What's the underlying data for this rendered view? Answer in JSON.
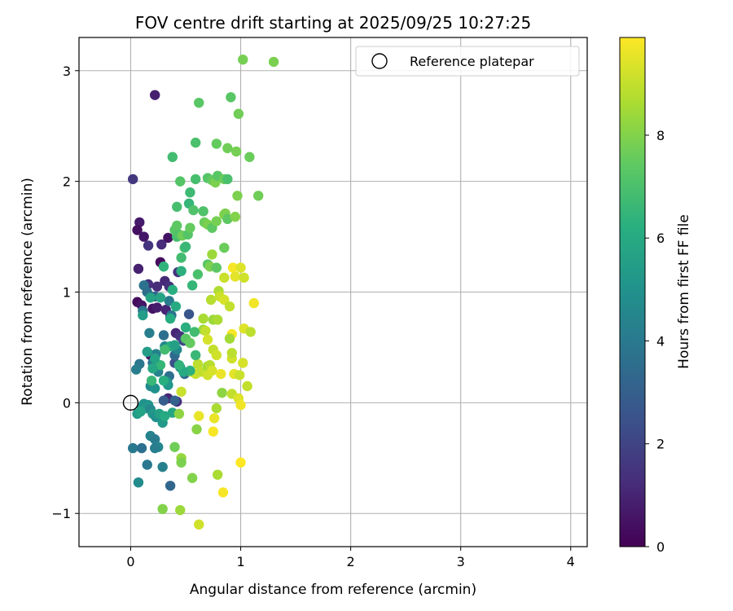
{
  "chart_data": {
    "type": "scatter",
    "title": "FOV centre drift starting at 2025/09/25 10:27:25",
    "xlabel": "Angular distance from reference (arcmin)",
    "ylabel": "Rotation from reference (arcmin)",
    "xlim": [
      -0.47,
      4.15
    ],
    "ylim": [
      -1.3,
      3.3
    ],
    "xticks": [
      0,
      1,
      2,
      3,
      4
    ],
    "xtick_labels": [
      "0",
      "1",
      "2",
      "3",
      "4"
    ],
    "yticks": [
      -1,
      0,
      1,
      2,
      3
    ],
    "ytick_labels": [
      "−1",
      "0",
      "1",
      "2",
      "3"
    ],
    "grid": true,
    "legend": {
      "position": "top-right",
      "entries": [
        "Reference platepar"
      ]
    },
    "reference_point": {
      "x": 0,
      "y": 0,
      "marker": "open-circle"
    },
    "colorbar": {
      "label": "Hours from first FF file",
      "colormap": "viridis",
      "range": [
        0,
        9.9
      ],
      "ticks": [
        0,
        2,
        4,
        6,
        8
      ],
      "tick_labels": [
        "0",
        "2",
        "4",
        "6",
        "8"
      ]
    },
    "points": [
      {
        "x": 0.22,
        "y": 2.78,
        "h": 0.9
      },
      {
        "x": 0.02,
        "y": 2.02,
        "h": 1.6
      },
      {
        "x": 0.08,
        "y": 1.63,
        "h": 0.7
      },
      {
        "x": 0.06,
        "y": 1.56,
        "h": 0.4
      },
      {
        "x": 0.12,
        "y": 1.5,
        "h": 0.6
      },
      {
        "x": 0.16,
        "y": 1.42,
        "h": 1.5
      },
      {
        "x": 0.28,
        "y": 1.43,
        "h": 1.2
      },
      {
        "x": 0.34,
        "y": 1.49,
        "h": 0.5
      },
      {
        "x": 0.07,
        "y": 1.21,
        "h": 0.9
      },
      {
        "x": 0.27,
        "y": 1.27,
        "h": 0.3
      },
      {
        "x": 0.31,
        "y": 1.1,
        "h": 1.1
      },
      {
        "x": 0.16,
        "y": 1.07,
        "h": 1.3
      },
      {
        "x": 0.24,
        "y": 1.05,
        "h": 1.2
      },
      {
        "x": 0.35,
        "y": 1.05,
        "h": 1.4
      },
      {
        "x": 0.43,
        "y": 1.18,
        "h": 1.5
      },
      {
        "x": 0.06,
        "y": 0.91,
        "h": 0.3
      },
      {
        "x": 0.1,
        "y": 0.88,
        "h": 0.6
      },
      {
        "x": 0.2,
        "y": 0.85,
        "h": 0.5
      },
      {
        "x": 0.24,
        "y": 0.86,
        "h": 0.8
      },
      {
        "x": 0.32,
        "y": 0.84,
        "h": 1.0
      },
      {
        "x": 0.36,
        "y": 0.78,
        "h": 1.3
      },
      {
        "x": 0.41,
        "y": 0.63,
        "h": 1.1
      },
      {
        "x": 0.45,
        "y": 0.6,
        "h": 1.4
      },
      {
        "x": 0.18,
        "y": 0.43,
        "h": 0.5
      },
      {
        "x": 0.34,
        "y": 0.04,
        "h": 1.0
      },
      {
        "x": 0.42,
        "y": 0.01,
        "h": 1.3
      },
      {
        "x": 0.48,
        "y": 0.56,
        "h": 2.2
      },
      {
        "x": 0.53,
        "y": 0.8,
        "h": 2.6
      },
      {
        "x": 0.4,
        "y": 0.36,
        "h": 2.4
      },
      {
        "x": 0.12,
        "y": 1.06,
        "h": 3.7
      },
      {
        "x": 0.15,
        "y": 1.0,
        "h": 3.5
      },
      {
        "x": 0.22,
        "y": 0.96,
        "h": 3.2
      },
      {
        "x": 0.11,
        "y": 0.83,
        "h": 3.9
      },
      {
        "x": 0.17,
        "y": 0.63,
        "h": 4.2
      },
      {
        "x": 0.3,
        "y": 0.61,
        "h": 3.6
      },
      {
        "x": 0.35,
        "y": 0.92,
        "h": 4.1
      },
      {
        "x": 0.37,
        "y": 0.79,
        "h": 3.8
      },
      {
        "x": 0.4,
        "y": 0.43,
        "h": 3.4
      },
      {
        "x": 0.31,
        "y": 0.51,
        "h": 4.6
      },
      {
        "x": 0.23,
        "y": 0.44,
        "h": 4.3
      },
      {
        "x": 0.2,
        "y": 0.36,
        "h": 4.0
      },
      {
        "x": 0.08,
        "y": 0.35,
        "h": 3.9
      },
      {
        "x": 0.05,
        "y": 0.3,
        "h": 4.2
      },
      {
        "x": 0.25,
        "y": 0.28,
        "h": 4.4
      },
      {
        "x": 0.35,
        "y": 0.24,
        "h": 3.6
      },
      {
        "x": 0.18,
        "y": 0.15,
        "h": 4.7
      },
      {
        "x": 0.22,
        "y": 0.13,
        "h": 5.0
      },
      {
        "x": 0.33,
        "y": 0.19,
        "h": 4.9
      },
      {
        "x": 0.34,
        "y": 0.16,
        "h": 5.2
      },
      {
        "x": 0.42,
        "y": 0.48,
        "h": 4.5
      },
      {
        "x": 0.45,
        "y": 0.32,
        "h": 4.8
      },
      {
        "x": 0.49,
        "y": 0.26,
        "h": 3.3
      },
      {
        "x": 0.1,
        "y": -0.04,
        "h": 5.3
      },
      {
        "x": 0.12,
        "y": -0.01,
        "h": 5.0
      },
      {
        "x": 0.14,
        "y": -0.05,
        "h": 5.5
      },
      {
        "x": 0.16,
        "y": -0.02,
        "h": 5.1
      },
      {
        "x": 0.18,
        "y": -0.06,
        "h": 4.6
      },
      {
        "x": 0.06,
        "y": -0.1,
        "h": 5.4
      },
      {
        "x": 0.09,
        "y": -0.08,
        "h": 5.7
      },
      {
        "x": 0.2,
        "y": -0.1,
        "h": 5.2
      },
      {
        "x": 0.23,
        "y": -0.13,
        "h": 4.9
      },
      {
        "x": 0.26,
        "y": -0.1,
        "h": 5.6
      },
      {
        "x": 0.29,
        "y": -0.18,
        "h": 5.3
      },
      {
        "x": 0.31,
        "y": -0.12,
        "h": 6.0
      },
      {
        "x": 0.38,
        "y": -0.09,
        "h": 5.8
      },
      {
        "x": 0.4,
        "y": 0.02,
        "h": 3.1
      },
      {
        "x": 0.3,
        "y": 0.02,
        "h": 2.9
      },
      {
        "x": 0.02,
        "y": -0.41,
        "h": 4.0
      },
      {
        "x": 0.1,
        "y": -0.41,
        "h": 3.6
      },
      {
        "x": 0.15,
        "y": -0.56,
        "h": 3.9
      },
      {
        "x": 0.18,
        "y": -0.3,
        "h": 4.4
      },
      {
        "x": 0.22,
        "y": -0.33,
        "h": 4.1
      },
      {
        "x": 0.25,
        "y": -0.4,
        "h": 4.6
      },
      {
        "x": 0.22,
        "y": -0.41,
        "h": 4.2
      },
      {
        "x": 0.29,
        "y": -0.58,
        "h": 4.3
      },
      {
        "x": 0.07,
        "y": -0.72,
        "h": 4.7
      },
      {
        "x": 0.36,
        "y": -0.75,
        "h": 3.3
      },
      {
        "x": 0.4,
        "y": -0.4,
        "h": 7.7
      },
      {
        "x": 0.44,
        "y": -0.1,
        "h": 8.2
      },
      {
        "x": 0.46,
        "y": -0.5,
        "h": 8.3
      },
      {
        "x": 0.46,
        "y": -0.54,
        "h": 7.9
      },
      {
        "x": 0.29,
        "y": -0.96,
        "h": 8.0
      },
      {
        "x": 0.45,
        "y": -0.97,
        "h": 8.4
      },
      {
        "x": 0.56,
        "y": -0.68,
        "h": 8.0
      },
      {
        "x": 0.62,
        "y": -1.1,
        "h": 9.2
      },
      {
        "x": 0.6,
        "y": -0.24,
        "h": 8.1
      },
      {
        "x": 0.62,
        "y": -0.12,
        "h": 9.6
      },
      {
        "x": 0.75,
        "y": -0.26,
        "h": 9.8
      },
      {
        "x": 0.76,
        "y": -0.14,
        "h": 9.6
      },
      {
        "x": 0.78,
        "y": -0.05,
        "h": 8.6
      },
      {
        "x": 0.79,
        "y": -0.65,
        "h": 8.6
      },
      {
        "x": 0.84,
        "y": -0.81,
        "h": 9.8
      },
      {
        "x": 1.0,
        "y": -0.54,
        "h": 9.9
      },
      {
        "x": 0.46,
        "y": 0.1,
        "h": 9.1
      },
      {
        "x": 0.55,
        "y": 0.28,
        "h": 9.0
      },
      {
        "x": 0.59,
        "y": 0.26,
        "h": 9.1
      },
      {
        "x": 0.61,
        "y": 0.35,
        "h": 8.9
      },
      {
        "x": 0.64,
        "y": 0.28,
        "h": 9.0
      },
      {
        "x": 0.7,
        "y": 0.33,
        "h": 8.5
      },
      {
        "x": 0.72,
        "y": 0.34,
        "h": 8.8
      },
      {
        "x": 0.7,
        "y": 0.25,
        "h": 9.2
      },
      {
        "x": 0.74,
        "y": 0.29,
        "h": 9.3
      },
      {
        "x": 0.75,
        "y": 0.48,
        "h": 9.0
      },
      {
        "x": 0.78,
        "y": 0.43,
        "h": 9.2
      },
      {
        "x": 0.82,
        "y": 0.26,
        "h": 9.6
      },
      {
        "x": 0.83,
        "y": 0.09,
        "h": 8.2
      },
      {
        "x": 0.92,
        "y": 0.08,
        "h": 9.0
      },
      {
        "x": 0.94,
        "y": 0.26,
        "h": 9.5
      },
      {
        "x": 0.92,
        "y": 0.4,
        "h": 9.2
      },
      {
        "x": 0.92,
        "y": 0.45,
        "h": 8.9
      },
      {
        "x": 0.98,
        "y": 0.04,
        "h": 9.4
      },
      {
        "x": 1.0,
        "y": -0.02,
        "h": 9.7
      },
      {
        "x": 0.99,
        "y": 0.25,
        "h": 9.1
      },
      {
        "x": 1.02,
        "y": 0.36,
        "h": 9.3
      },
      {
        "x": 1.06,
        "y": 0.15,
        "h": 9.0
      },
      {
        "x": 1.03,
        "y": 0.67,
        "h": 9.4
      },
      {
        "x": 1.09,
        "y": 0.64,
        "h": 8.9
      },
      {
        "x": 1.12,
        "y": 0.9,
        "h": 9.7
      },
      {
        "x": 0.92,
        "y": 0.62,
        "h": 9.8
      },
      {
        "x": 0.9,
        "y": 0.58,
        "h": 8.5
      },
      {
        "x": 0.66,
        "y": 0.66,
        "h": 8.3
      },
      {
        "x": 0.66,
        "y": 0.76,
        "h": 8.6
      },
      {
        "x": 0.68,
        "y": 0.65,
        "h": 9.0
      },
      {
        "x": 0.7,
        "y": 0.57,
        "h": 9.3
      },
      {
        "x": 0.73,
        "y": 0.93,
        "h": 8.8
      },
      {
        "x": 0.75,
        "y": 0.75,
        "h": 8.4
      },
      {
        "x": 0.79,
        "y": 0.75,
        "h": 8.6
      },
      {
        "x": 0.8,
        "y": 1.01,
        "h": 8.7
      },
      {
        "x": 0.81,
        "y": 0.96,
        "h": 9.1
      },
      {
        "x": 0.85,
        "y": 0.93,
        "h": 9.3
      },
      {
        "x": 0.85,
        "y": 1.13,
        "h": 9.1
      },
      {
        "x": 0.9,
        "y": 0.87,
        "h": 9.0
      },
      {
        "x": 0.93,
        "y": 1.22,
        "h": 9.8
      },
      {
        "x": 0.95,
        "y": 1.14,
        "h": 9.5
      },
      {
        "x": 1.0,
        "y": 1.22,
        "h": 9.4
      },
      {
        "x": 1.03,
        "y": 1.13,
        "h": 9.2
      },
      {
        "x": 0.74,
        "y": 1.34,
        "h": 8.4
      },
      {
        "x": 0.7,
        "y": 1.25,
        "h": 7.3
      },
      {
        "x": 0.72,
        "y": 1.23,
        "h": 7.9
      },
      {
        "x": 0.78,
        "y": 1.22,
        "h": 7.4
      },
      {
        "x": 0.85,
        "y": 1.4,
        "h": 7.6
      },
      {
        "x": 0.56,
        "y": 1.06,
        "h": 6.5
      },
      {
        "x": 0.61,
        "y": 1.16,
        "h": 7.0
      },
      {
        "x": 0.58,
        "y": 0.64,
        "h": 6.8
      },
      {
        "x": 0.5,
        "y": 0.58,
        "h": 7.3
      },
      {
        "x": 0.54,
        "y": 0.54,
        "h": 7.5
      },
      {
        "x": 0.5,
        "y": 0.68,
        "h": 6.2
      },
      {
        "x": 0.59,
        "y": 0.43,
        "h": 6.6
      },
      {
        "x": 0.54,
        "y": 0.29,
        "h": 6.3
      },
      {
        "x": 0.48,
        "y": 0.28,
        "h": 6.0
      },
      {
        "x": 0.44,
        "y": 0.34,
        "h": 6.4
      },
      {
        "x": 0.36,
        "y": 0.51,
        "h": 6.1
      },
      {
        "x": 0.31,
        "y": 0.48,
        "h": 6.8
      },
      {
        "x": 0.27,
        "y": 0.34,
        "h": 6.5
      },
      {
        "x": 0.3,
        "y": 0.2,
        "h": 6.2
      },
      {
        "x": 0.19,
        "y": 0.2,
        "h": 6.6
      },
      {
        "x": 0.2,
        "y": 0.31,
        "h": 5.9
      },
      {
        "x": 0.22,
        "y": 0.4,
        "h": 5.7
      },
      {
        "x": 0.15,
        "y": 0.46,
        "h": 5.5
      },
      {
        "x": 0.11,
        "y": 0.79,
        "h": 5.4
      },
      {
        "x": 0.18,
        "y": 0.95,
        "h": 5.7
      },
      {
        "x": 0.27,
        "y": 0.95,
        "h": 5.8
      },
      {
        "x": 0.3,
        "y": 1.23,
        "h": 6.4
      },
      {
        "x": 0.38,
        "y": 1.02,
        "h": 6.2
      },
      {
        "x": 0.41,
        "y": 0.87,
        "h": 6.0
      },
      {
        "x": 0.36,
        "y": 0.76,
        "h": 6.1
      },
      {
        "x": 0.4,
        "y": 0.52,
        "h": 5.6
      },
      {
        "x": 0.46,
        "y": 1.19,
        "h": 6.3
      },
      {
        "x": 0.46,
        "y": 1.31,
        "h": 6.8
      },
      {
        "x": 0.42,
        "y": 1.5,
        "h": 6.9
      },
      {
        "x": 0.4,
        "y": 1.56,
        "h": 7.3
      },
      {
        "x": 0.44,
        "y": 1.52,
        "h": 7.1
      },
      {
        "x": 0.47,
        "y": 1.51,
        "h": 7.7
      },
      {
        "x": 0.49,
        "y": 1.4,
        "h": 7.0
      },
      {
        "x": 0.5,
        "y": 1.41,
        "h": 6.6
      },
      {
        "x": 0.52,
        "y": 1.52,
        "h": 7.2
      },
      {
        "x": 0.54,
        "y": 1.58,
        "h": 7.5
      },
      {
        "x": 0.42,
        "y": 1.6,
        "h": 7.4
      },
      {
        "x": 0.42,
        "y": 1.77,
        "h": 6.9
      },
      {
        "x": 0.53,
        "y": 1.8,
        "h": 6.5
      },
      {
        "x": 0.57,
        "y": 1.74,
        "h": 7.1
      },
      {
        "x": 0.54,
        "y": 1.9,
        "h": 6.7
      },
      {
        "x": 0.45,
        "y": 2.0,
        "h": 7.2
      },
      {
        "x": 0.38,
        "y": 2.22,
        "h": 6.8
      },
      {
        "x": 0.59,
        "y": 2.02,
        "h": 6.9
      },
      {
        "x": 0.59,
        "y": 2.35,
        "h": 7.0
      },
      {
        "x": 0.62,
        "y": 2.71,
        "h": 7.3
      },
      {
        "x": 0.66,
        "y": 1.73,
        "h": 7.1
      },
      {
        "x": 0.67,
        "y": 1.63,
        "h": 7.6
      },
      {
        "x": 0.7,
        "y": 1.61,
        "h": 7.9
      },
      {
        "x": 0.74,
        "y": 1.58,
        "h": 7.4
      },
      {
        "x": 0.78,
        "y": 1.64,
        "h": 7.8
      },
      {
        "x": 0.7,
        "y": 2.03,
        "h": 7.2
      },
      {
        "x": 0.74,
        "y": 2.01,
        "h": 7.5
      },
      {
        "x": 0.77,
        "y": 1.99,
        "h": 7.9
      },
      {
        "x": 0.79,
        "y": 2.05,
        "h": 7.3
      },
      {
        "x": 0.85,
        "y": 2.02,
        "h": 7.6
      },
      {
        "x": 0.88,
        "y": 2.02,
        "h": 7.0
      },
      {
        "x": 0.78,
        "y": 2.34,
        "h": 7.5
      },
      {
        "x": 0.88,
        "y": 2.3,
        "h": 7.7
      },
      {
        "x": 0.96,
        "y": 2.27,
        "h": 7.8
      },
      {
        "x": 1.08,
        "y": 2.22,
        "h": 7.6
      },
      {
        "x": 0.91,
        "y": 2.76,
        "h": 7.3
      },
      {
        "x": 0.98,
        "y": 2.61,
        "h": 7.7
      },
      {
        "x": 0.85,
        "y": 1.7,
        "h": 8.1
      },
      {
        "x": 0.86,
        "y": 1.71,
        "h": 7.9
      },
      {
        "x": 0.88,
        "y": 1.66,
        "h": 7.4
      },
      {
        "x": 0.95,
        "y": 1.68,
        "h": 8.0
      },
      {
        "x": 0.97,
        "y": 1.87,
        "h": 7.9
      },
      {
        "x": 1.16,
        "y": 1.87,
        "h": 7.7
      },
      {
        "x": 1.02,
        "y": 3.1,
        "h": 7.8
      },
      {
        "x": 1.3,
        "y": 3.08,
        "h": 7.9
      }
    ]
  }
}
